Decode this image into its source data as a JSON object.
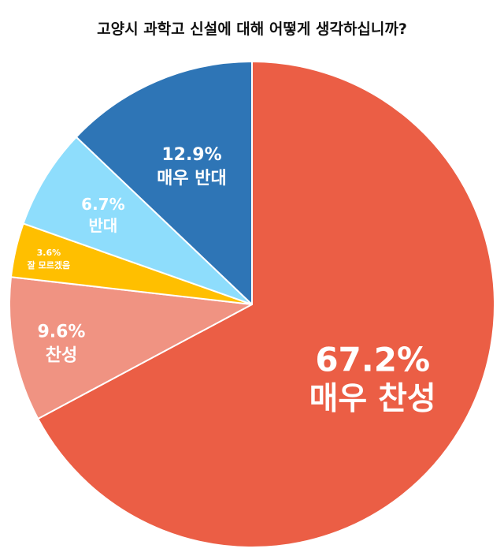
{
  "chart_data": {
    "type": "pie",
    "title": "고양시 과학고 신설에 대해 어떻게 생각하십니까?",
    "slices": [
      {
        "label": "매우 찬성",
        "value": 67.2,
        "display": "67.2%",
        "color": "#EB5E45"
      },
      {
        "label": "찬성",
        "value": 9.6,
        "display": "9.6%",
        "color": "#F09382"
      },
      {
        "label": "잘 모르겠음",
        "value": 3.6,
        "display": "3.6%",
        "color": "#FFBF00"
      },
      {
        "label": "반대",
        "value": 6.7,
        "display": "6.7%",
        "color": "#8EDDFC"
      },
      {
        "label": "매우 반대",
        "value": 12.9,
        "display": "12.9%",
        "color": "#2E75B6"
      }
    ]
  }
}
